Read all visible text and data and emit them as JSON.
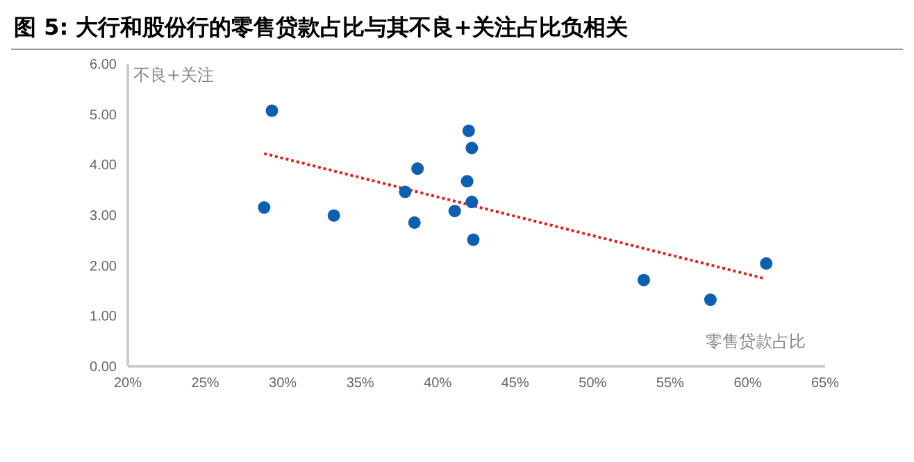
{
  "chart_data": {
    "type": "scatter",
    "title": "图 5: 大行和股份行的零售贷款占比与其不良+关注占比负相关",
    "xlabel": "零售贷款占比",
    "ylabel": "不良+关注",
    "xlim": [
      20,
      65
    ],
    "xticks": [
      {
        "value": 20,
        "label": "20%"
      },
      {
        "value": 25,
        "label": "25%"
      },
      {
        "value": 30,
        "label": "30%"
      },
      {
        "value": 35,
        "label": "35%"
      },
      {
        "value": 40,
        "label": "40%"
      },
      {
        "value": 45,
        "label": "45%"
      },
      {
        "value": 50,
        "label": "50%"
      },
      {
        "value": 55,
        "label": "55%"
      },
      {
        "value": 60,
        "label": "60%"
      },
      {
        "value": 65,
        "label": "65%"
      }
    ],
    "ylim": [
      0,
      6
    ],
    "yticks": [
      {
        "value": 0,
        "label": "0.00"
      },
      {
        "value": 1,
        "label": "1.00"
      },
      {
        "value": 2,
        "label": "2.00"
      },
      {
        "value": 3,
        "label": "3.00"
      },
      {
        "value": 4,
        "label": "4.00"
      },
      {
        "value": 5,
        "label": "5.00"
      },
      {
        "value": 6,
        "label": "6.00"
      }
    ],
    "grid": false,
    "marker": "circle",
    "series": [
      {
        "color": "#0f5fb0",
        "x": [
          28.8,
          29.3,
          33.3,
          37.9,
          38.7,
          38.5,
          41.1,
          42.0,
          42.2,
          41.9,
          42.2,
          42.3,
          53.3,
          57.6,
          61.2
        ],
        "values": [
          3.15,
          5.07,
          2.99,
          3.46,
          3.92,
          2.85,
          3.08,
          4.67,
          4.33,
          3.67,
          3.26,
          2.51,
          1.71,
          1.32,
          2.04
        ]
      },
      {
        "type": "line",
        "color": "#e02020",
        "line_style": "dotted",
        "marker": "none",
        "x": [
          28.8,
          61.1
        ],
        "values": [
          4.22,
          1.74
        ]
      }
    ]
  }
}
